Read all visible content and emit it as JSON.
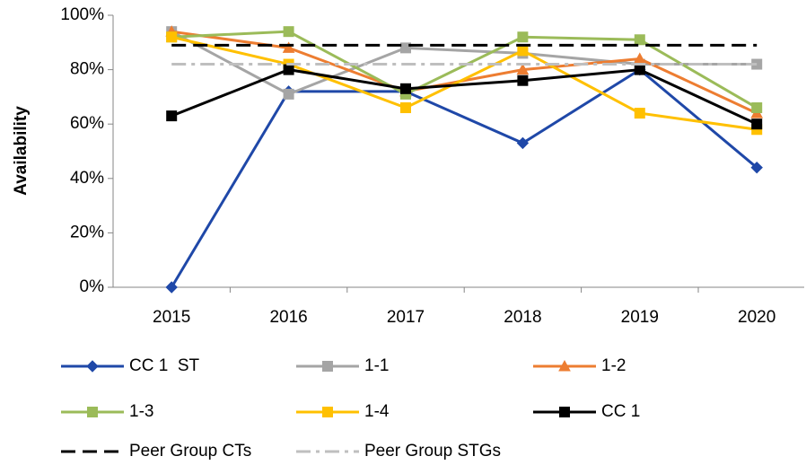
{
  "chart_data": {
    "type": "line",
    "y_label": "Availability",
    "categories": [
      "2015",
      "2016",
      "2017",
      "2018",
      "2019",
      "2020"
    ],
    "series": [
      {
        "name": "CC 1  ST",
        "color": "#1f48a8",
        "marker": "diamond",
        "dash": "solid",
        "values": [
          0,
          72,
          72,
          53,
          80,
          44
        ]
      },
      {
        "name": "1-1",
        "color": "#a5a5a5",
        "marker": "square",
        "dash": "solid",
        "values": [
          94,
          71,
          88,
          86,
          82,
          82
        ]
      },
      {
        "name": "1-2",
        "color": "#ed7d31",
        "marker": "triangle",
        "dash": "solid",
        "values": [
          94,
          88,
          72,
          80,
          84,
          64
        ]
      },
      {
        "name": "1-3",
        "color": "#9bbb59",
        "marker": "square",
        "dash": "solid",
        "values": [
          92,
          94,
          71,
          92,
          91,
          66
        ]
      },
      {
        "name": "1-4",
        "color": "#ffc000",
        "marker": "square",
        "dash": "solid",
        "values": [
          92,
          82,
          66,
          87,
          64,
          58
        ]
      },
      {
        "name": "CC 1",
        "color": "#000000",
        "marker": "square",
        "dash": "solid",
        "values": [
          63,
          80,
          73,
          76,
          80,
          60
        ]
      },
      {
        "name": "Peer Group CTs",
        "color": "#000000",
        "marker": "none",
        "dash": "dashed",
        "values": [
          89,
          89,
          89,
          89,
          89,
          89
        ]
      },
      {
        "name": "Peer Group STGs",
        "color": "#bfbfbf",
        "marker": "none",
        "dash": "dashdot",
        "values": [
          82,
          82,
          82,
          82,
          82,
          82
        ]
      }
    ],
    "ylim": [
      0,
      100
    ],
    "yticks": [
      {
        "value": 0,
        "label": "0%"
      },
      {
        "value": 20,
        "label": "20%"
      },
      {
        "value": 40,
        "label": "40%"
      },
      {
        "value": 60,
        "label": "60%"
      },
      {
        "value": 80,
        "label": "80%"
      },
      {
        "value": 100,
        "label": "100%"
      }
    ],
    "grid": false,
    "legend": "bottom"
  }
}
